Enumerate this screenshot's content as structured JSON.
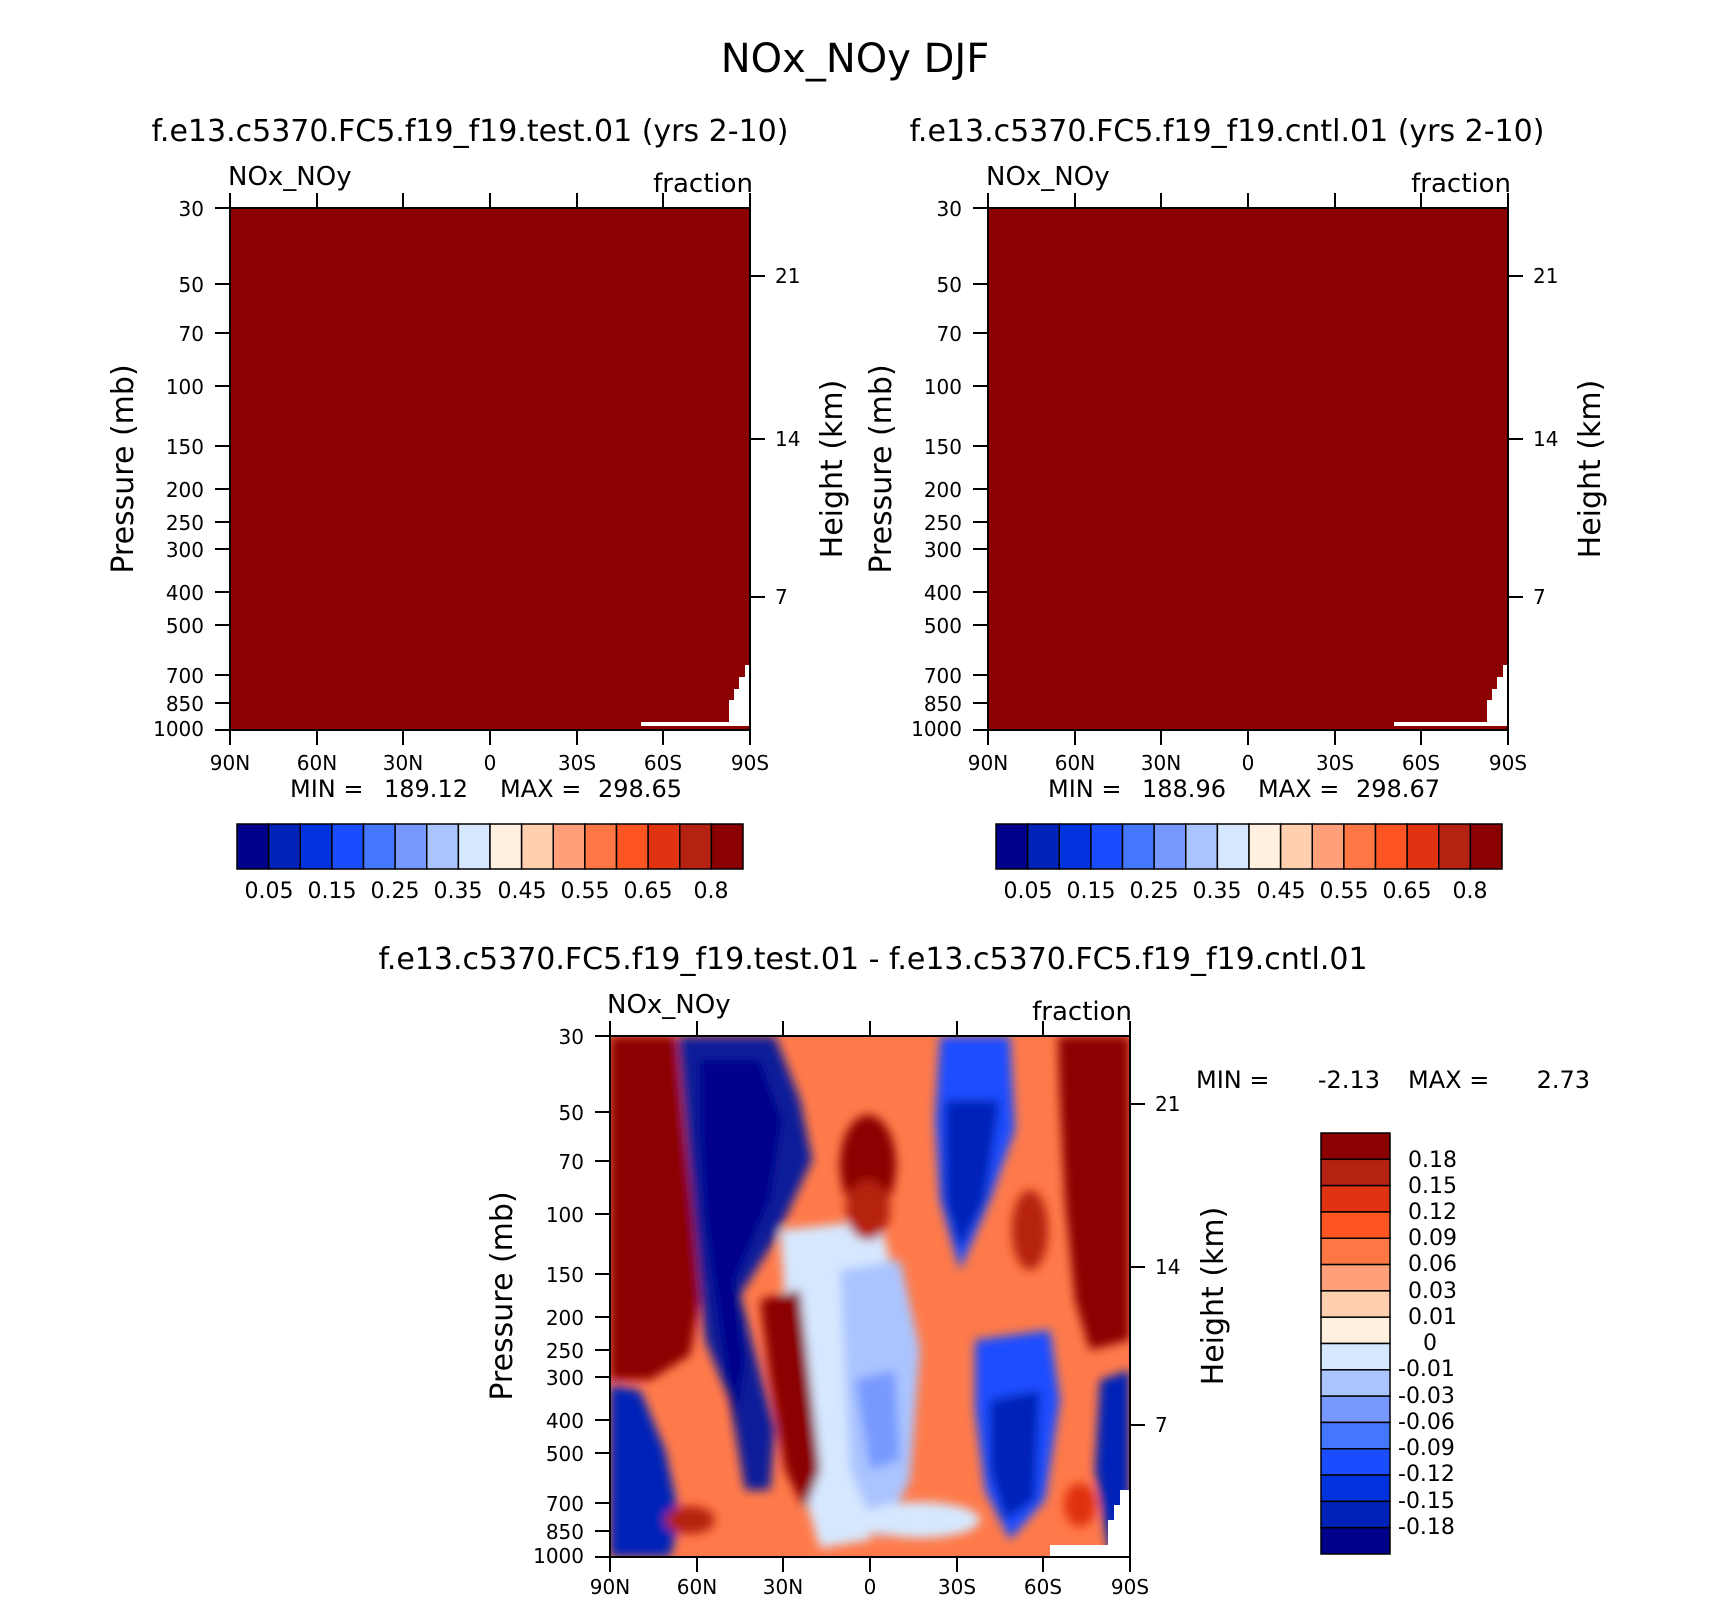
{
  "title": "NOx_NOy DJF",
  "colors": {
    "seq_cbar": [
      "#00008b",
      "#0022b8",
      "#0033dd",
      "#1a4dff",
      "#4477ff",
      "#7799ff",
      "#aac4ff",
      "#d6e8ff",
      "#fff0e0",
      "#ffd0b0",
      "#ffa07a",
      "#ff7744",
      "#ff5522",
      "#e03311",
      "#b52211",
      "#8b0000"
    ],
    "diff_cbar": [
      "#8b0000",
      "#b52211",
      "#e03311",
      "#ff5522",
      "#ff7744",
      "#ffa07a",
      "#ffd0b0",
      "#fff0e0",
      "#d6e8ff",
      "#aac4ff",
      "#7799ff",
      "#4477ff",
      "#1a4dff",
      "#0033dd",
      "#0022b8",
      "#00008b"
    ],
    "fill_dark_red": "#8b0000"
  },
  "chart_data": [
    {
      "type": "heatmap",
      "panel": "test",
      "title": "f.e13.c5370.FC5.f19_f19.test.01 (yrs 2-10)",
      "var_label": "NOx_NOy",
      "units_label": "fraction",
      "xlabel": "",
      "ylabel": "Pressure (mb)",
      "y2label": "Height (km)",
      "x_ticks": [
        "90N",
        "60N",
        "30N",
        "0",
        "30S",
        "60S",
        "90S"
      ],
      "y_ticks": [
        "30",
        "50",
        "70",
        "100",
        "150",
        "200",
        "250",
        "300",
        "400",
        "500",
        "700",
        "850",
        "1000"
      ],
      "y2_ticks": [
        "21",
        "14",
        "7"
      ],
      "stats": {
        "min_label": "MIN =",
        "min_value": "189.12",
        "max_label": "MAX =",
        "max_value": "298.65"
      },
      "colorbar_labels": [
        "0.05",
        "0.15",
        "0.25",
        "0.35",
        "0.45",
        "0.55",
        "0.65",
        "0.8"
      ],
      "field_value": "above 0.8 everywhere (saturated)"
    },
    {
      "type": "heatmap",
      "panel": "cntl",
      "title": "f.e13.c5370.FC5.f19_f19.cntl.01 (yrs 2-10)",
      "var_label": "NOx_NOy",
      "units_label": "fraction",
      "xlabel": "",
      "ylabel": "Pressure (mb)",
      "y2label": "Height (km)",
      "x_ticks": [
        "90N",
        "60N",
        "30N",
        "0",
        "30S",
        "60S",
        "90S"
      ],
      "y_ticks": [
        "30",
        "50",
        "70",
        "100",
        "150",
        "200",
        "250",
        "300",
        "400",
        "500",
        "700",
        "850",
        "1000"
      ],
      "y2_ticks": [
        "21",
        "14",
        "7"
      ],
      "stats": {
        "min_label": "MIN =",
        "min_value": "188.96",
        "max_label": "MAX =",
        "max_value": "298.67"
      },
      "colorbar_labels": [
        "0.05",
        "0.15",
        "0.25",
        "0.35",
        "0.45",
        "0.55",
        "0.65",
        "0.8"
      ],
      "field_value": "above 0.8 everywhere (saturated)"
    },
    {
      "type": "heatmap",
      "panel": "diff",
      "title": "f.e13.c5370.FC5.f19_f19.test.01 - f.e13.c5370.FC5.f19_f19.cntl.01",
      "var_label": "NOx_NOy",
      "units_label": "fraction",
      "xlabel": "",
      "ylabel": "Pressure (mb)",
      "y2label": "Height (km)",
      "x_ticks": [
        "90N",
        "60N",
        "30N",
        "0",
        "30S",
        "60S",
        "90S"
      ],
      "y_ticks": [
        "30",
        "50",
        "70",
        "100",
        "150",
        "200",
        "250",
        "300",
        "400",
        "500",
        "700",
        "850",
        "1000"
      ],
      "y2_ticks": [
        "21",
        "14",
        "7"
      ],
      "stats": {
        "min_label": "MIN =",
        "min_value": "-2.13",
        "max_label": "MAX =",
        "max_value": "2.73"
      },
      "colorbar_labels": [
        "0.18",
        "0.15",
        "0.12",
        "0.09",
        "0.06",
        "0.03",
        "0.01",
        "0",
        "-0.01",
        "-0.03",
        "-0.06",
        "-0.09",
        "-0.12",
        "-0.15",
        "-0.18"
      ]
    }
  ]
}
